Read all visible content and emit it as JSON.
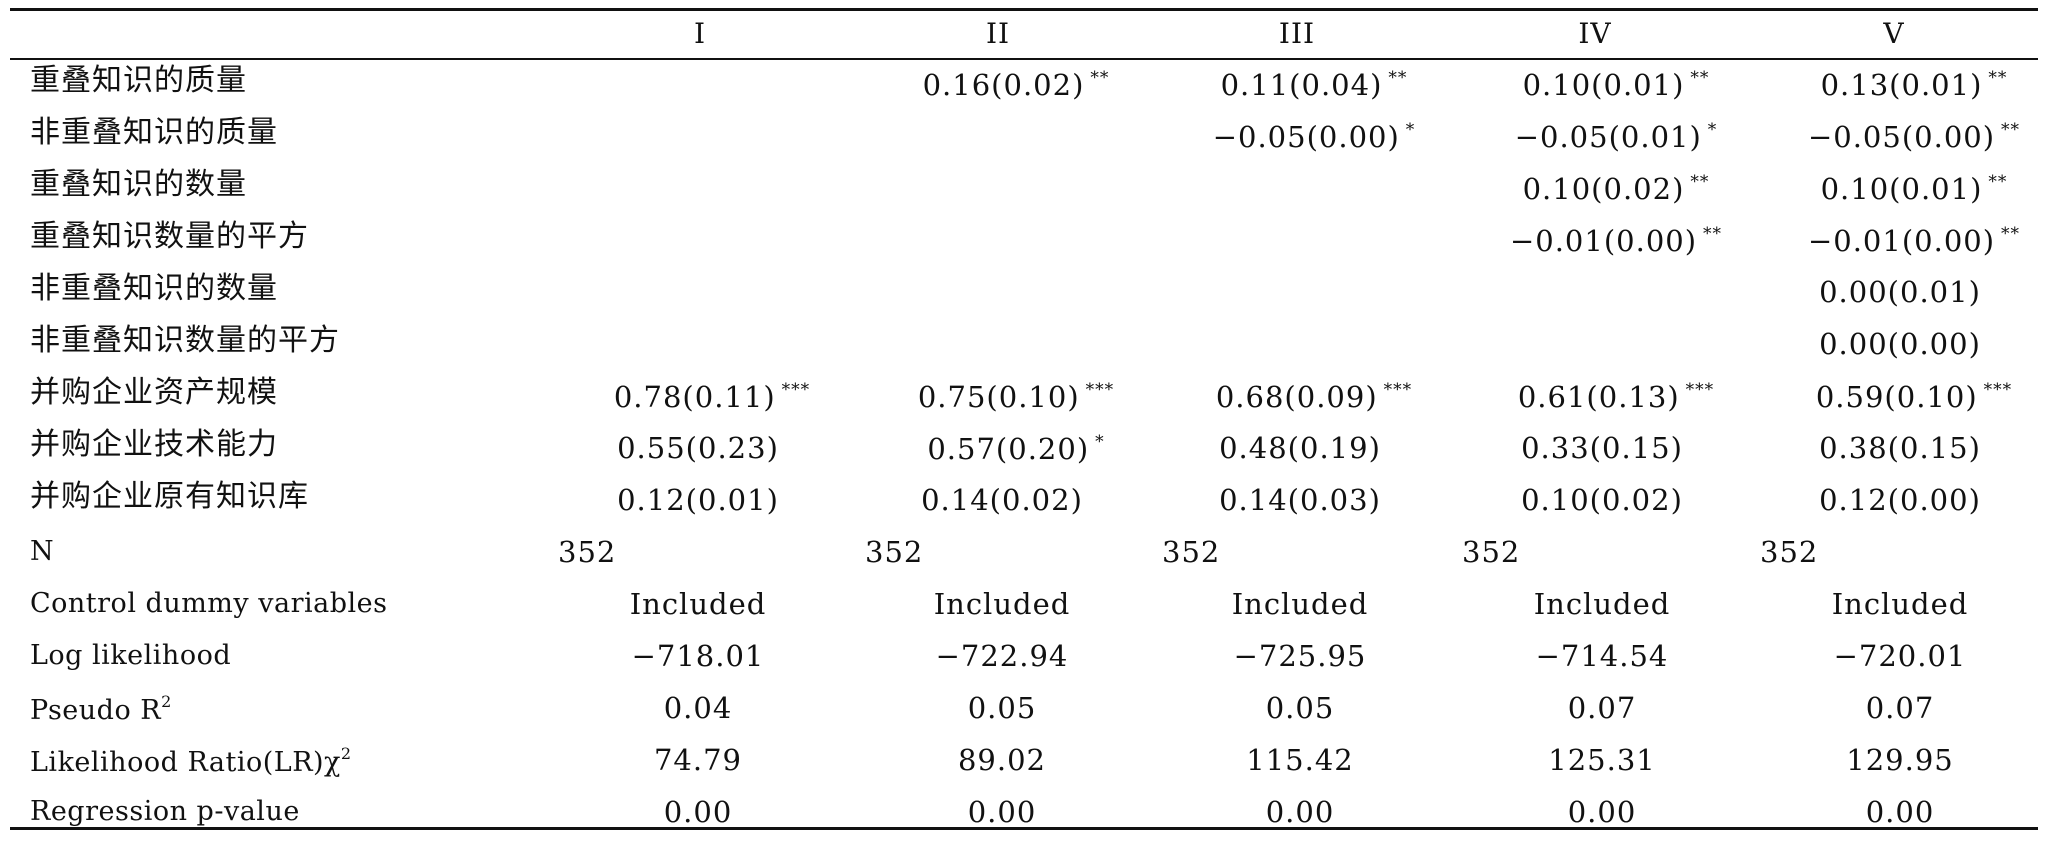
{
  "columns": [
    "I",
    "II",
    "III",
    "IV",
    "V"
  ],
  "rows": [
    {
      "label": "重叠知识的质量",
      "cells": [
        null,
        {
          "value": "0.16(0.02)",
          "sig": "**"
        },
        {
          "value": "0.11(0.04)",
          "sig": "**"
        },
        {
          "value": "0.10(0.01)",
          "sig": "**"
        },
        {
          "value": "0.13(0.01)",
          "sig": "**"
        }
      ]
    },
    {
      "label": "非重叠知识的质量",
      "cells": [
        null,
        null,
        {
          "value": "−0.05(0.00)",
          "sig": "*"
        },
        {
          "value": "−0.05(0.01)",
          "sig": "*"
        },
        {
          "value": "−0.05(0.00)",
          "sig": "**"
        }
      ]
    },
    {
      "label": "重叠知识的数量",
      "cells": [
        null,
        null,
        null,
        {
          "value": "0.10(0.02)",
          "sig": "**"
        },
        {
          "value": "0.10(0.01)",
          "sig": "**"
        }
      ]
    },
    {
      "label": "重叠知识数量的平方",
      "cells": [
        null,
        null,
        null,
        {
          "value": "−0.01(0.00)",
          "sig": "**"
        },
        {
          "value": "−0.01(0.00)",
          "sig": "**"
        }
      ]
    },
    {
      "label": "非重叠知识的数量",
      "cells": [
        null,
        null,
        null,
        null,
        {
          "value": "0.00(0.01)",
          "sig": ""
        }
      ]
    },
    {
      "label": "非重叠知识数量的平方",
      "cells": [
        null,
        null,
        null,
        null,
        {
          "value": "0.00(0.00)",
          "sig": ""
        }
      ]
    },
    {
      "label": "并购企业资产规模",
      "cells": [
        {
          "value": "0.78(0.11)",
          "sig": "***"
        },
        {
          "value": "0.75(0.10)",
          "sig": "***"
        },
        {
          "value": "0.68(0.09)",
          "sig": "***"
        },
        {
          "value": "0.61(0.13)",
          "sig": "***"
        },
        {
          "value": "0.59(0.10)",
          "sig": "***"
        }
      ]
    },
    {
      "label": "并购企业技术能力",
      "cells": [
        {
          "value": "0.55(0.23)",
          "sig": ""
        },
        {
          "value": "0.57(0.20)",
          "sig": "*"
        },
        {
          "value": "0.48(0.19)",
          "sig": ""
        },
        {
          "value": "0.33(0.15)",
          "sig": ""
        },
        {
          "value": "0.38(0.15)",
          "sig": ""
        }
      ]
    },
    {
      "label": "并购企业原有知识库",
      "cells": [
        {
          "value": "0.12(0.01)",
          "sig": ""
        },
        {
          "value": "0.14(0.02)",
          "sig": ""
        },
        {
          "value": "0.14(0.03)",
          "sig": ""
        },
        {
          "value": "0.10(0.02)",
          "sig": ""
        },
        {
          "value": "0.12(0.00)",
          "sig": ""
        }
      ]
    },
    {
      "label": "N",
      "cells": [
        {
          "value": "352",
          "sig": ""
        },
        {
          "value": "352",
          "sig": ""
        },
        {
          "value": "352",
          "sig": ""
        },
        {
          "value": "352",
          "sig": ""
        },
        {
          "value": "352",
          "sig": ""
        }
      ]
    },
    {
      "label": "Control dummy variables",
      "cells": [
        {
          "value": "Included",
          "sig": ""
        },
        {
          "value": "Included",
          "sig": ""
        },
        {
          "value": "Included",
          "sig": ""
        },
        {
          "value": "Included",
          "sig": ""
        },
        {
          "value": "Included",
          "sig": ""
        }
      ]
    },
    {
      "label": "Log likelihood",
      "cells": [
        {
          "value": "−718.01",
          "sig": ""
        },
        {
          "value": "−722.94",
          "sig": ""
        },
        {
          "value": "−725.95",
          "sig": ""
        },
        {
          "value": "−714.54",
          "sig": ""
        },
        {
          "value": "−720.01",
          "sig": ""
        }
      ]
    },
    {
      "label": "Pseudo R",
      "label_sup": "2",
      "cells": [
        {
          "value": "0.04",
          "sig": ""
        },
        {
          "value": "0.05",
          "sig": ""
        },
        {
          "value": "0.05",
          "sig": ""
        },
        {
          "value": "0.07",
          "sig": ""
        },
        {
          "value": "0.07",
          "sig": ""
        }
      ]
    },
    {
      "label": "Likelihood Ratio(LR)χ",
      "label_sup": "2",
      "cells": [
        {
          "value": "74.79",
          "sig": ""
        },
        {
          "value": "89.02",
          "sig": ""
        },
        {
          "value": "115.42",
          "sig": ""
        },
        {
          "value": "125.31",
          "sig": ""
        },
        {
          "value": "129.95",
          "sig": ""
        }
      ]
    },
    {
      "label": "Regression p-value",
      "cells": [
        {
          "value": "0.00",
          "sig": ""
        },
        {
          "value": "0.00",
          "sig": ""
        },
        {
          "value": "0.00",
          "sig": ""
        },
        {
          "value": "0.00",
          "sig": ""
        },
        {
          "value": "0.00",
          "sig": ""
        }
      ]
    }
  ]
}
